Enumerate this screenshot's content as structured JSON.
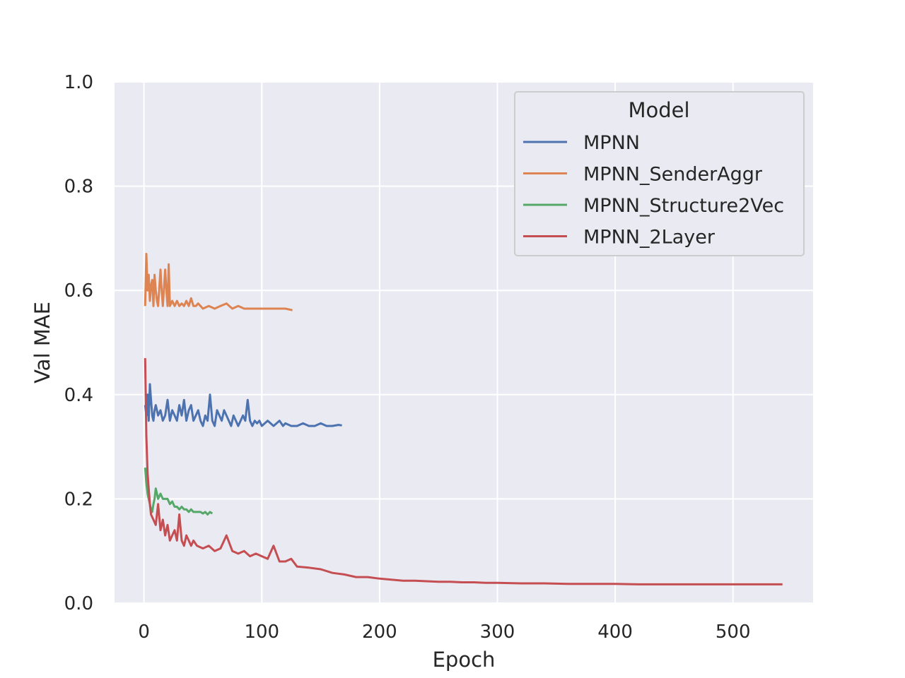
{
  "chart_data": {
    "type": "line",
    "title": "",
    "xlabel": "Epoch",
    "ylabel": "Val MAE",
    "xlim": [
      -25,
      568
    ],
    "ylim": [
      0,
      1
    ],
    "xticks": [
      0,
      100,
      200,
      300,
      400,
      500
    ],
    "yticks": [
      0.0,
      0.2,
      0.4,
      0.6,
      0.8,
      1.0
    ],
    "xtick_labels": [
      "0",
      "100",
      "200",
      "300",
      "400",
      "500"
    ],
    "ytick_labels": [
      "0.0",
      "0.2",
      "0.4",
      "0.6",
      "0.8",
      "1.0"
    ],
    "grid": true,
    "legend": {
      "title": "Model",
      "position": "top-right"
    },
    "series": [
      {
        "name": "MPNN",
        "color": "#4c72b0",
        "x": [
          1,
          2,
          3,
          4,
          5,
          6,
          7,
          8,
          9,
          10,
          12,
          14,
          16,
          18,
          20,
          22,
          24,
          26,
          28,
          30,
          32,
          34,
          36,
          38,
          40,
          42,
          44,
          46,
          48,
          50,
          52,
          54,
          56,
          58,
          60,
          62,
          64,
          66,
          68,
          70,
          72,
          74,
          76,
          78,
          80,
          82,
          84,
          86,
          88,
          90,
          92,
          94,
          96,
          98,
          100,
          105,
          110,
          115,
          118,
          120,
          125,
          130,
          135,
          140,
          145,
          150,
          155,
          160,
          165,
          168
        ],
        "y": [
          0.38,
          0.36,
          0.4,
          0.35,
          0.42,
          0.39,
          0.36,
          0.35,
          0.37,
          0.38,
          0.36,
          0.37,
          0.35,
          0.36,
          0.39,
          0.35,
          0.37,
          0.36,
          0.35,
          0.38,
          0.36,
          0.39,
          0.35,
          0.37,
          0.38,
          0.35,
          0.36,
          0.37,
          0.35,
          0.34,
          0.36,
          0.35,
          0.4,
          0.35,
          0.34,
          0.37,
          0.36,
          0.35,
          0.37,
          0.36,
          0.35,
          0.34,
          0.36,
          0.35,
          0.34,
          0.35,
          0.36,
          0.35,
          0.39,
          0.35,
          0.34,
          0.35,
          0.345,
          0.35,
          0.34,
          0.35,
          0.34,
          0.35,
          0.34,
          0.345,
          0.34,
          0.34,
          0.345,
          0.34,
          0.34,
          0.345,
          0.34,
          0.34,
          0.342,
          0.341
        ]
      },
      {
        "name": "MPNN_SenderAggr",
        "color": "#dd8452",
        "x": [
          1,
          2,
          3,
          4,
          5,
          6,
          7,
          8,
          9,
          10,
          11,
          12,
          14,
          15,
          16,
          18,
          19,
          20,
          21,
          22,
          24,
          26,
          28,
          30,
          32,
          34,
          36,
          38,
          40,
          42,
          44,
          46,
          48,
          50,
          55,
          60,
          65,
          70,
          75,
          80,
          85,
          90,
          95,
          100,
          105,
          110,
          115,
          120,
          126
        ],
        "y": [
          0.57,
          0.67,
          0.6,
          0.63,
          0.58,
          0.61,
          0.62,
          0.57,
          0.63,
          0.6,
          0.58,
          0.57,
          0.64,
          0.6,
          0.57,
          0.64,
          0.6,
          0.57,
          0.65,
          0.57,
          0.58,
          0.57,
          0.58,
          0.57,
          0.575,
          0.57,
          0.58,
          0.57,
          0.585,
          0.57,
          0.57,
          0.575,
          0.57,
          0.565,
          0.57,
          0.565,
          0.57,
          0.575,
          0.565,
          0.57,
          0.565,
          0.565,
          0.565,
          0.565,
          0.565,
          0.565,
          0.565,
          0.565,
          0.562
        ]
      },
      {
        "name": "MPNN_Structure2Vec",
        "color": "#55a868",
        "x": [
          1,
          2,
          3,
          4,
          5,
          6,
          7,
          8,
          9,
          10,
          11,
          12,
          14,
          16,
          18,
          20,
          22,
          24,
          26,
          28,
          30,
          32,
          34,
          36,
          38,
          40,
          42,
          44,
          46,
          48,
          50,
          52,
          54,
          56,
          58
        ],
        "y": [
          0.26,
          0.23,
          0.21,
          0.2,
          0.19,
          0.18,
          0.175,
          0.19,
          0.2,
          0.22,
          0.21,
          0.2,
          0.21,
          0.2,
          0.2,
          0.2,
          0.19,
          0.195,
          0.185,
          0.185,
          0.18,
          0.185,
          0.18,
          0.18,
          0.175,
          0.18,
          0.175,
          0.175,
          0.175,
          0.175,
          0.172,
          0.175,
          0.17,
          0.175,
          0.172
        ]
      },
      {
        "name": "MPNN_2Layer",
        "color": "#c44e52",
        "x": [
          1,
          2,
          3,
          4,
          5,
          6,
          8,
          10,
          12,
          14,
          16,
          18,
          20,
          22,
          24,
          26,
          28,
          30,
          32,
          34,
          36,
          38,
          40,
          42,
          45,
          50,
          55,
          60,
          65,
          70,
          75,
          80,
          85,
          90,
          95,
          100,
          105,
          110,
          115,
          120,
          125,
          130,
          140,
          150,
          160,
          170,
          180,
          190,
          200,
          210,
          220,
          230,
          240,
          250,
          260,
          270,
          280,
          290,
          300,
          320,
          340,
          360,
          380,
          400,
          420,
          440,
          460,
          480,
          500,
          520,
          542
        ],
        "y": [
          0.47,
          0.32,
          0.25,
          0.22,
          0.19,
          0.17,
          0.16,
          0.15,
          0.19,
          0.14,
          0.16,
          0.13,
          0.15,
          0.12,
          0.13,
          0.14,
          0.12,
          0.17,
          0.12,
          0.11,
          0.13,
          0.12,
          0.11,
          0.12,
          0.11,
          0.105,
          0.11,
          0.1,
          0.105,
          0.13,
          0.1,
          0.095,
          0.1,
          0.09,
          0.095,
          0.09,
          0.085,
          0.11,
          0.08,
          0.08,
          0.085,
          0.07,
          0.068,
          0.065,
          0.058,
          0.055,
          0.05,
          0.05,
          0.047,
          0.045,
          0.043,
          0.043,
          0.042,
          0.041,
          0.041,
          0.04,
          0.04,
          0.039,
          0.039,
          0.038,
          0.038,
          0.037,
          0.037,
          0.037,
          0.036,
          0.036,
          0.036,
          0.036,
          0.036,
          0.036,
          0.036
        ]
      }
    ]
  }
}
